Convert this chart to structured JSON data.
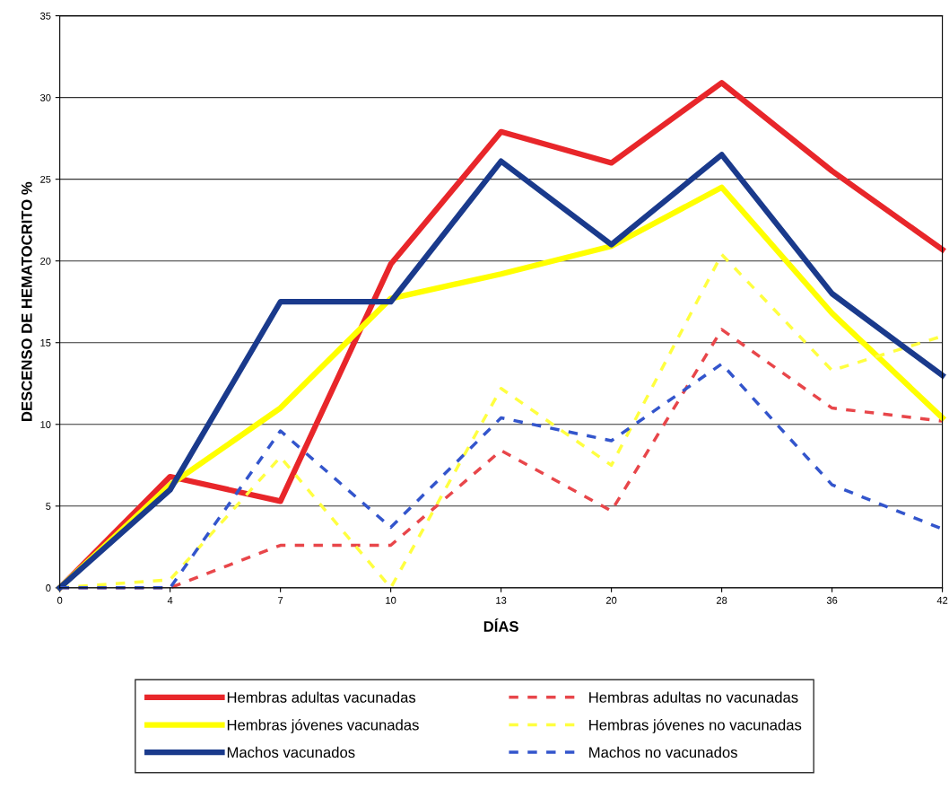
{
  "chart_data": {
    "type": "line",
    "xlabel": "DÍAS",
    "ylabel": "DESCENSO DE HEMATOCRITO %",
    "categories": [
      "0",
      "4",
      "7",
      "10",
      "13",
      "20",
      "28",
      "36",
      "42"
    ],
    "ylim": [
      0,
      35
    ],
    "yticks": [
      0,
      5,
      10,
      15,
      20,
      25,
      30,
      35
    ],
    "grid": "y",
    "legend": "bottom",
    "marker": "none",
    "series": [
      {
        "name": "Hembras adultas vacunadas",
        "color": "#e8262a",
        "line_style": "solid",
        "values": [
          0,
          6.8,
          5.3,
          19.8,
          27.9,
          26.0,
          30.9,
          25.5,
          20.7
        ]
      },
      {
        "name": "Hembras adultas no vacunadas",
        "color": "#e8464a",
        "line_style": "dashed",
        "values": [
          0,
          0,
          2.6,
          2.6,
          8.4,
          4.7,
          15.8,
          11.0,
          10.2
        ]
      },
      {
        "name": "Hembras jóvenes vacunadas",
        "color": "#ffff00",
        "line_style": "solid",
        "values": [
          0,
          6.3,
          11.0,
          17.7,
          19.2,
          20.9,
          24.5,
          16.8,
          10.4
        ]
      },
      {
        "name": "Hembras jóvenes no vacunadas",
        "color": "#ffff40",
        "line_style": "dashed",
        "values": [
          0,
          0.5,
          8.0,
          0,
          12.2,
          7.5,
          20.4,
          13.3,
          15.4
        ]
      },
      {
        "name": "Machos vacunados",
        "color": "#1a3a8c",
        "line_style": "solid",
        "values": [
          0,
          6.0,
          17.5,
          17.5,
          26.1,
          21.0,
          26.5,
          18.0,
          13.0
        ]
      },
      {
        "name": "Machos no vacunados",
        "color": "#3355cc",
        "line_style": "dashed",
        "values": [
          0,
          0,
          9.6,
          3.7,
          10.4,
          9.0,
          13.7,
          6.3,
          3.6
        ]
      }
    ]
  }
}
